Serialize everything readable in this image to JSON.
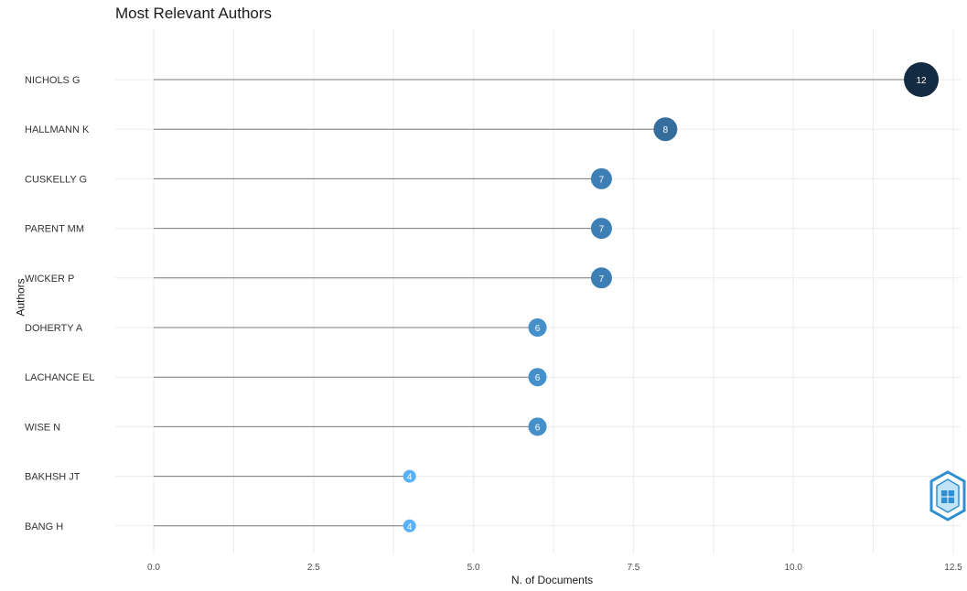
{
  "chart_data": {
    "type": "lollipop",
    "title": "Most Relevant Authors",
    "xlabel": "N. of Documents",
    "ylabel": "Authors",
    "xlim": [
      0,
      12.5
    ],
    "x_ticks": [
      "0.0",
      "2.5",
      "5.0",
      "7.5",
      "10.0",
      "12.5"
    ],
    "x_tick_values": [
      0,
      2.5,
      5.0,
      7.5,
      10.0,
      12.5
    ],
    "grid": true,
    "categories": [
      "NICHOLS G",
      "HALLMANN K",
      "CUSKELLY G",
      "PARENT MM",
      "WICKER P",
      "DOHERTY A",
      "LACHANCE EL",
      "WISE N",
      "BAKHSH JT",
      "BANG H"
    ],
    "values": [
      12,
      8,
      7,
      7,
      7,
      6,
      6,
      6,
      4,
      4
    ],
    "labels": [
      "12",
      "8",
      "7",
      "7",
      "7",
      "6",
      "6",
      "6",
      "4",
      "4"
    ],
    "color_scale": {
      "low": "#56B1F7",
      "high": "#132B43"
    }
  },
  "watermark": {
    "name": "bibliometrix-logo-icon"
  }
}
